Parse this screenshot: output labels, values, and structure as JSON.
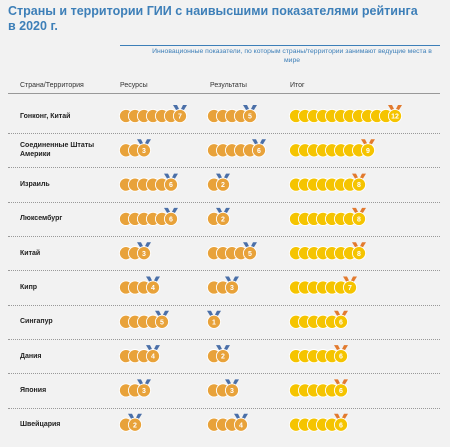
{
  "title": "Страны и территории ГИИ с наивысшими показателями рейтинга в 2020 г.",
  "subtitle": "Инновационные показатели, по которым страны/территории занимают ведущие места в мире",
  "columns": {
    "country": "Страна/Территория",
    "resources": "Ресурсы",
    "results": "Результаты",
    "total": "Итог"
  },
  "colors": {
    "title": "#3d7fb8",
    "medal_orange": "#e8a23a",
    "medal_yellow": "#f5c400",
    "ribbon_blue": "#4a6fa8",
    "ribbon_orange": "#e27a2e"
  },
  "chart_data": {
    "type": "table",
    "rows": [
      {
        "country": "Гонконг, Китай",
        "resources": 7,
        "results": 5,
        "total": 12
      },
      {
        "country": "Соединенные Штаты Америки",
        "resources": 3,
        "results": 6,
        "total": 9
      },
      {
        "country": "Израиль",
        "resources": 6,
        "results": 2,
        "total": 8
      },
      {
        "country": "Люксембург",
        "resources": 6,
        "results": 2,
        "total": 8
      },
      {
        "country": "Китай",
        "resources": 3,
        "results": 5,
        "total": 8
      },
      {
        "country": "Кипр",
        "resources": 4,
        "results": 3,
        "total": 7
      },
      {
        "country": "Сингапур",
        "resources": 5,
        "results": 1,
        "total": 6
      },
      {
        "country": "Дания",
        "resources": 4,
        "results": 2,
        "total": 6
      },
      {
        "country": "Япония",
        "resources": 3,
        "results": 3,
        "total": 6
      },
      {
        "country": "Швейцария",
        "resources": 2,
        "results": 4,
        "total": 6
      }
    ]
  }
}
